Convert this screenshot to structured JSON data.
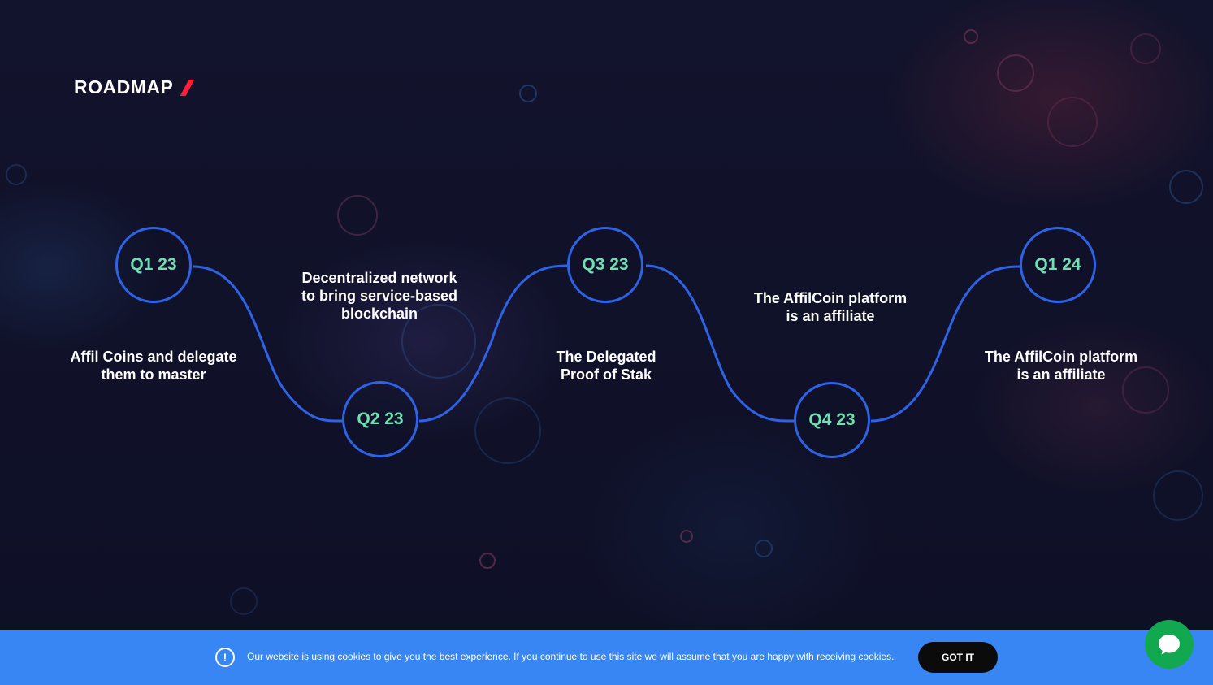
{
  "section": {
    "title": "ROADMAP"
  },
  "milestones": [
    {
      "quarter": "Q1 23",
      "text_line1": "Affil Coins and delegate",
      "text_line2": "them to master"
    },
    {
      "quarter": "Q2 23",
      "text_line1": "Decentralized network",
      "text_line2": "to bring service-based",
      "text_line3": "blockchain"
    },
    {
      "quarter": "Q3 23",
      "text_line1": "The Delegated",
      "text_line2": "Proof of Stak"
    },
    {
      "quarter": "Q4 23",
      "text_line1": "The AffilCoin platform",
      "text_line2": "is an affiliate"
    },
    {
      "quarter": "Q1 24",
      "text_line1": "The AffilCoin platform",
      "text_line2": "is an affiliate"
    }
  ],
  "cookie_banner": {
    "icon": "info-icon",
    "icon_glyph": "!",
    "message": "Our website is using cookies to give you the best experience. If you continue to use this site we will assume that you are happy with receiving cookies.",
    "button_label": "GOT IT"
  },
  "chat_widget": {
    "icon": "chat-bubble-icon"
  },
  "colors": {
    "accent_blue": "#2e63e6",
    "quarter_text": "#6ee0b2",
    "slash_red": "#ff1e3c",
    "banner_blue": "#3886f4",
    "chat_green": "#12a84f"
  }
}
